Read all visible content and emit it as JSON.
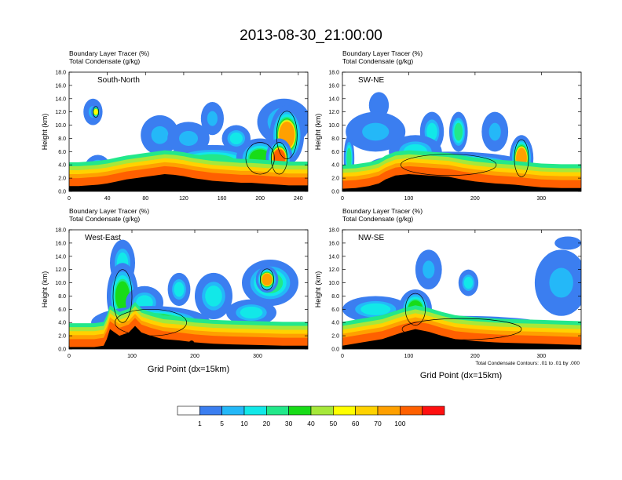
{
  "title": "2013-08-30_21:00:00",
  "panel_header": {
    "line1": "Boundary Layer Tracer   (%)",
    "line2": "Total Condensate   (g/kg)"
  },
  "y_axis_label": "Height (km)",
  "x_axis_label": "Grid Point (dx=15km)",
  "contour_note": "Total Condensate Contours: .01 to .01 by .000",
  "colors": {
    "bins": [
      "#ffffff",
      "#3b7ef0",
      "#24b8f8",
      "#12e8e8",
      "#22e88a",
      "#18dc18",
      "#a6e83a",
      "#ffff00",
      "#ffd200",
      "#ffa000",
      "#ff6000",
      "#ff1010"
    ],
    "terrain": "#000000",
    "contour": "#000000"
  },
  "colorbar": {
    "labels": [
      "1",
      "5",
      "10",
      "20",
      "30",
      "40",
      "50",
      "60",
      "70",
      "100"
    ]
  },
  "chart_data": [
    {
      "type": "heatmap",
      "name": "South-North",
      "xlim": [
        0,
        250
      ],
      "xticks": [
        0,
        40,
        80,
        120,
        160,
        200,
        240
      ],
      "ylim": [
        0,
        18
      ],
      "yticks": [
        "0.0",
        "2.0",
        "4.0",
        "6.0",
        "8.0",
        "10.0",
        "12.0",
        "14.0",
        "16.0",
        "18.0"
      ],
      "marker_x": 125,
      "terrain": [
        [
          0,
          0.8
        ],
        [
          10,
          0.8
        ],
        [
          20,
          0.9
        ],
        [
          30,
          1.0
        ],
        [
          40,
          1.2
        ],
        [
          50,
          1.5
        ],
        [
          60,
          1.8
        ],
        [
          70,
          2.0
        ],
        [
          80,
          2.2
        ],
        [
          90,
          2.4
        ],
        [
          100,
          2.6
        ],
        [
          110,
          2.5
        ],
        [
          120,
          2.3
        ],
        [
          130,
          2.0
        ],
        [
          140,
          1.8
        ],
        [
          150,
          1.6
        ],
        [
          160,
          1.5
        ],
        [
          170,
          1.4
        ],
        [
          180,
          1.3
        ],
        [
          190,
          1.3
        ],
        [
          200,
          1.2
        ],
        [
          210,
          1.1
        ],
        [
          220,
          1.0
        ],
        [
          230,
          0.9
        ],
        [
          240,
          0.9
        ],
        [
          250,
          0.9
        ]
      ],
      "blobs": [
        {
          "x": 25,
          "y": 12.0,
          "rx": 10,
          "ry": 2.0,
          "v": 5
        },
        {
          "x": 28,
          "y": 12.0,
          "rx": 5,
          "ry": 1.0,
          "v": 50
        },
        {
          "x": 30,
          "y": 3.0,
          "rx": 15,
          "ry": 2.5,
          "v": 20
        },
        {
          "x": 75,
          "y": 4.0,
          "rx": 30,
          "ry": 1.5,
          "v": 10
        },
        {
          "x": 95,
          "y": 8.5,
          "rx": 20,
          "ry": 3.0,
          "v": 5
        },
        {
          "x": 125,
          "y": 8.0,
          "rx": 22,
          "ry": 2.5,
          "v": 5
        },
        {
          "x": 150,
          "y": 11.0,
          "rx": 12,
          "ry": 2.5,
          "v": 5
        },
        {
          "x": 175,
          "y": 8.0,
          "rx": 15,
          "ry": 2.0,
          "v": 10
        },
        {
          "x": 150,
          "y": 4.5,
          "rx": 55,
          "ry": 2.5,
          "v": 20
        },
        {
          "x": 200,
          "y": 5.0,
          "rx": 25,
          "ry": 3.0,
          "v": 30
        },
        {
          "x": 225,
          "y": 10.5,
          "rx": 28,
          "ry": 3.5,
          "v": 10
        },
        {
          "x": 228,
          "y": 8.5,
          "rx": 18,
          "ry": 4.5,
          "v": 70
        },
        {
          "x": 220,
          "y": 5.0,
          "rx": 14,
          "ry": 3.0,
          "v": 100
        }
      ]
    },
    {
      "type": "heatmap",
      "name": "SW-NE",
      "xlim": [
        0,
        360
      ],
      "xticks": [
        0,
        100,
        200,
        300
      ],
      "ylim": [
        0,
        18
      ],
      "yticks": [
        "0.0",
        "2.0",
        "4.0",
        "6.0",
        "8.0",
        "10.0",
        "12.0",
        "14.0",
        "16.0",
        "18.0"
      ],
      "marker_x": 180,
      "terrain": [
        [
          0,
          0.4
        ],
        [
          20,
          0.5
        ],
        [
          40,
          0.8
        ],
        [
          55,
          1.2
        ],
        [
          65,
          1.8
        ],
        [
          80,
          2.4
        ],
        [
          100,
          2.6
        ],
        [
          130,
          2.4
        ],
        [
          160,
          2.2
        ],
        [
          180,
          1.8
        ],
        [
          200,
          1.5
        ],
        [
          230,
          1.2
        ],
        [
          260,
          1.0
        ],
        [
          280,
          0.8
        ],
        [
          300,
          0.6
        ],
        [
          330,
          0.5
        ],
        [
          360,
          0.5
        ]
      ],
      "blobs": [
        {
          "x": 55,
          "y": 13.0,
          "rx": 15,
          "ry": 2.0,
          "v": 1
        },
        {
          "x": 50,
          "y": 9.0,
          "rx": 45,
          "ry": 3.0,
          "v": 5
        },
        {
          "x": 135,
          "y": 9.0,
          "rx": 18,
          "ry": 3.0,
          "v": 10
        },
        {
          "x": 175,
          "y": 9.0,
          "rx": 14,
          "ry": 3.0,
          "v": 20
        },
        {
          "x": 230,
          "y": 9.0,
          "rx": 20,
          "ry": 3.0,
          "v": 5
        },
        {
          "x": 110,
          "y": 6.0,
          "rx": 40,
          "ry": 2.5,
          "v": 10
        },
        {
          "x": 160,
          "y": 4.0,
          "rx": 120,
          "ry": 2.0,
          "v": 50
        },
        {
          "x": 270,
          "y": 5.0,
          "rx": 18,
          "ry": 3.5,
          "v": 70
        },
        {
          "x": 10,
          "y": 5.0,
          "rx": 8,
          "ry": 3.5,
          "v": 20
        },
        {
          "x": 340,
          "y": 2.0,
          "rx": 25,
          "ry": 1.0,
          "v": 20
        }
      ]
    },
    {
      "type": "heatmap",
      "name": "West-East",
      "xlim": [
        0,
        380
      ],
      "xticks": [
        0,
        100,
        200,
        300
      ],
      "ylim": [
        0,
        18
      ],
      "yticks": [
        "0.0",
        "2.0",
        "4.0",
        "6.0",
        "8.0",
        "10.0",
        "12.0",
        "14.0",
        "16.0",
        "18.0"
      ],
      "marker_x": 195,
      "terrain": [
        [
          0,
          0.3
        ],
        [
          40,
          0.3
        ],
        [
          55,
          0.5
        ],
        [
          60,
          1.5
        ],
        [
          65,
          3.0
        ],
        [
          80,
          2.0
        ],
        [
          95,
          2.5
        ],
        [
          105,
          3.5
        ],
        [
          115,
          2.5
        ],
        [
          130,
          2.0
        ],
        [
          150,
          1.5
        ],
        [
          175,
          1.3
        ],
        [
          200,
          1.0
        ],
        [
          230,
          0.8
        ],
        [
          260,
          0.7
        ],
        [
          300,
          0.6
        ],
        [
          340,
          0.5
        ],
        [
          380,
          0.5
        ]
      ],
      "blobs": [
        {
          "x": 85,
          "y": 13.0,
          "rx": 20,
          "ry": 3.5,
          "v": 10
        },
        {
          "x": 85,
          "y": 8.0,
          "rx": 25,
          "ry": 5.0,
          "v": 30
        },
        {
          "x": 120,
          "y": 7.0,
          "rx": 30,
          "ry": 2.5,
          "v": 10
        },
        {
          "x": 230,
          "y": 8.0,
          "rx": 30,
          "ry": 3.5,
          "v": 10
        },
        {
          "x": 175,
          "y": 9.0,
          "rx": 18,
          "ry": 2.5,
          "v": 10
        },
        {
          "x": 320,
          "y": 10.0,
          "rx": 45,
          "ry": 3.5,
          "v": 20
        },
        {
          "x": 315,
          "y": 10.5,
          "rx": 18,
          "ry": 2.0,
          "v": 70
        },
        {
          "x": 290,
          "y": 5.5,
          "rx": 40,
          "ry": 2.0,
          "v": 10
        },
        {
          "x": 130,
          "y": 4.0,
          "rx": 95,
          "ry": 2.5,
          "v": 50
        }
      ]
    },
    {
      "type": "heatmap",
      "name": "NW-SE",
      "xlim": [
        0,
        360
      ],
      "xticks": [
        0,
        100,
        200,
        300
      ],
      "ylim": [
        0,
        18
      ],
      "yticks": [
        "0.0",
        "2.0",
        "4.0",
        "6.0",
        "8.0",
        "10.0",
        "12.0",
        "14.0",
        "16.0",
        "18.0"
      ],
      "marker_x": 180,
      "terrain": [
        [
          0,
          0.5
        ],
        [
          30,
          1.0
        ],
        [
          60,
          1.5
        ],
        [
          90,
          2.5
        ],
        [
          110,
          3.0
        ],
        [
          130,
          2.6
        ],
        [
          150,
          2.0
        ],
        [
          170,
          1.5
        ],
        [
          200,
          1.2
        ],
        [
          230,
          1.0
        ],
        [
          260,
          0.9
        ],
        [
          300,
          0.8
        ],
        [
          330,
          0.7
        ],
        [
          360,
          0.6
        ]
      ],
      "blobs": [
        {
          "x": 130,
          "y": 12.0,
          "rx": 20,
          "ry": 3.0,
          "v": 5
        },
        {
          "x": 190,
          "y": 10.0,
          "rx": 15,
          "ry": 2.0,
          "v": 10
        },
        {
          "x": 50,
          "y": 6.0,
          "rx": 50,
          "ry": 2.0,
          "v": 10
        },
        {
          "x": 110,
          "y": 6.0,
          "rx": 25,
          "ry": 3.0,
          "v": 30
        },
        {
          "x": 330,
          "y": 10.0,
          "rx": 40,
          "ry": 5.0,
          "v": 5
        },
        {
          "x": 340,
          "y": 16.0,
          "rx": 20,
          "ry": 1.0,
          "v": 1
        },
        {
          "x": 180,
          "y": 3.0,
          "rx": 150,
          "ry": 2.0,
          "v": 50
        }
      ]
    }
  ]
}
